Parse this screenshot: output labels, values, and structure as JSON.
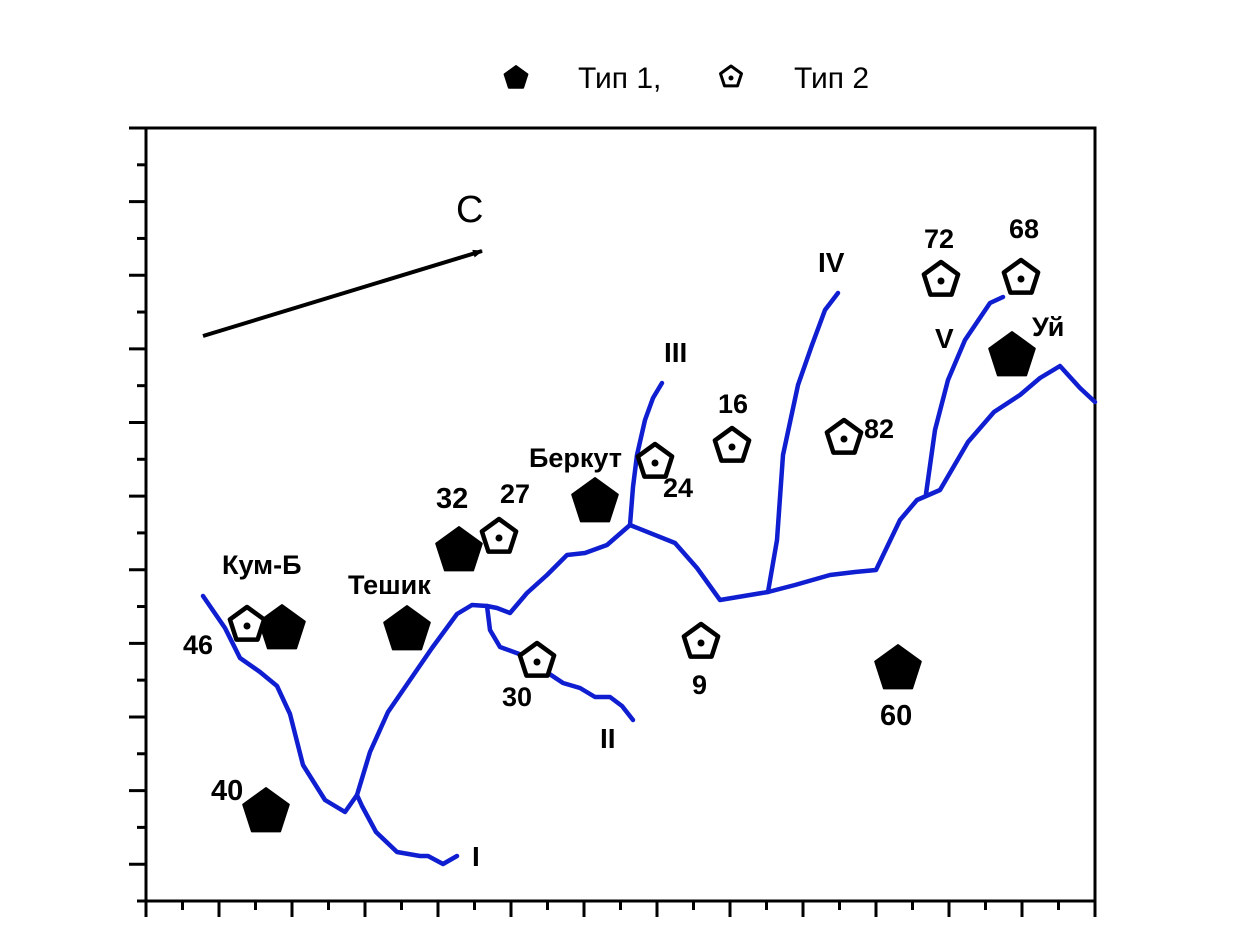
{
  "legend": {
    "type1_label": "Тип 1,",
    "type2_label": "Тип 2"
  },
  "north_label": "С",
  "colors": {
    "river": "#0f1ed1",
    "symbol": "#000000",
    "frame": "#000000"
  },
  "rivers": [
    {
      "id": "I",
      "label": "I"
    },
    {
      "id": "II",
      "label": "II"
    },
    {
      "id": "III",
      "label": "III"
    },
    {
      "id": "IV",
      "label": "IV"
    },
    {
      "id": "V",
      "label": "V"
    }
  ],
  "sites": [
    {
      "id": "kum-b",
      "type": 1,
      "label": "Кум-Б"
    },
    {
      "id": "46",
      "type": 2,
      "label": "46"
    },
    {
      "id": "teshik",
      "type": 1,
      "label": "Тешик"
    },
    {
      "id": "32",
      "type": 1,
      "label": "32"
    },
    {
      "id": "27",
      "type": 2,
      "label": "27"
    },
    {
      "id": "berkut",
      "type": 1,
      "label": "Беркут"
    },
    {
      "id": "24",
      "type": 2,
      "label": "24"
    },
    {
      "id": "30",
      "type": 2,
      "label": "30"
    },
    {
      "id": "16",
      "type": 2,
      "label": "16"
    },
    {
      "id": "9",
      "type": 2,
      "label": "9"
    },
    {
      "id": "82",
      "type": 2,
      "label": "82"
    },
    {
      "id": "72",
      "type": 2,
      "label": "72"
    },
    {
      "id": "68",
      "type": 2,
      "label": "68"
    },
    {
      "id": "uy",
      "type": 1,
      "label": "Уй"
    },
    {
      "id": "60",
      "type": 1,
      "label": "60"
    },
    {
      "id": "40",
      "type": 1,
      "label": "40"
    }
  ]
}
